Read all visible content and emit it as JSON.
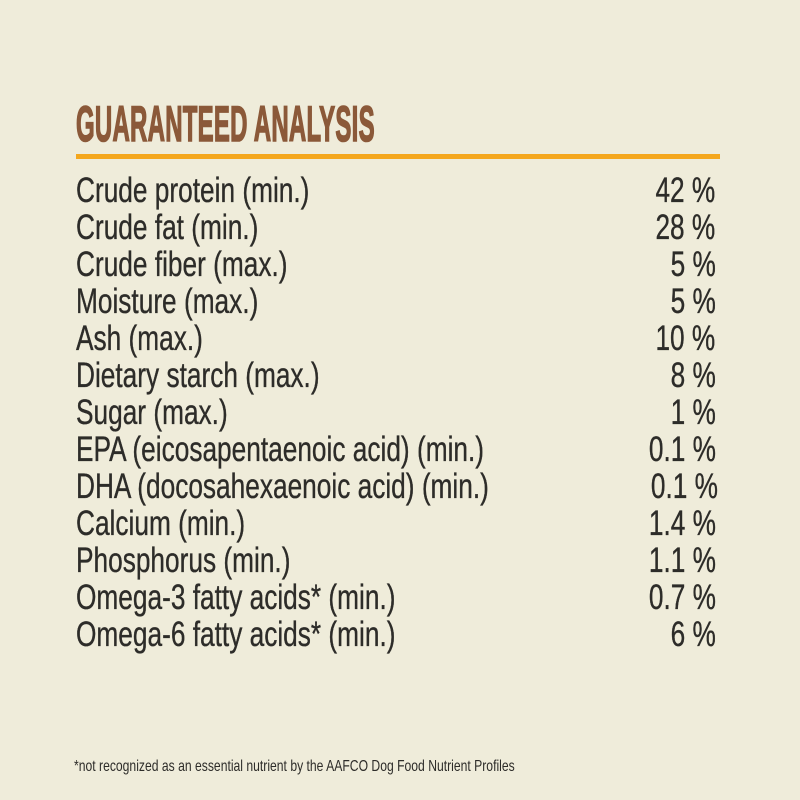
{
  "theme": {
    "bg": "#efecda",
    "brown": "#8b5939",
    "orange": "#f4a71d",
    "ink": "#2d2c29"
  },
  "header": {
    "title": "GUARANTEED ANALYSIS"
  },
  "analysis": {
    "rows": [
      {
        "label": "Crude protein (min.)",
        "value": "42 %"
      },
      {
        "label": "Crude fat (min.)",
        "value": "28 %"
      },
      {
        "label": "Crude fiber (max.)",
        "value": "5 %"
      },
      {
        "label": "Moisture (max.)",
        "value": "5 %"
      },
      {
        "label": "Ash (max.)",
        "value": "10 %"
      },
      {
        "label": "Dietary starch (max.)",
        "value": "8 %"
      },
      {
        "label": "Sugar (max.)",
        "value": "1 %"
      },
      {
        "label": "EPA (eicosapentaenoic acid) (min.)",
        "value": "0.1 %"
      },
      {
        "label": "DHA (docosahexaenoic acid) (min.)",
        "value": "0.1 %"
      },
      {
        "label": "Calcium (min.)",
        "value": "1.4 %"
      },
      {
        "label": "Phosphorus (min.)",
        "value": "1.1 %"
      },
      {
        "label": "Omega-3 fatty acids* (min.)",
        "value": "0.7 %"
      },
      {
        "label": "Omega-6 fatty acids* (min.)",
        "value": "6 %"
      }
    ]
  },
  "footnote": {
    "text": "*not recognized as an essential nutrient by the AAFCO Dog Food Nutrient Profiles"
  }
}
